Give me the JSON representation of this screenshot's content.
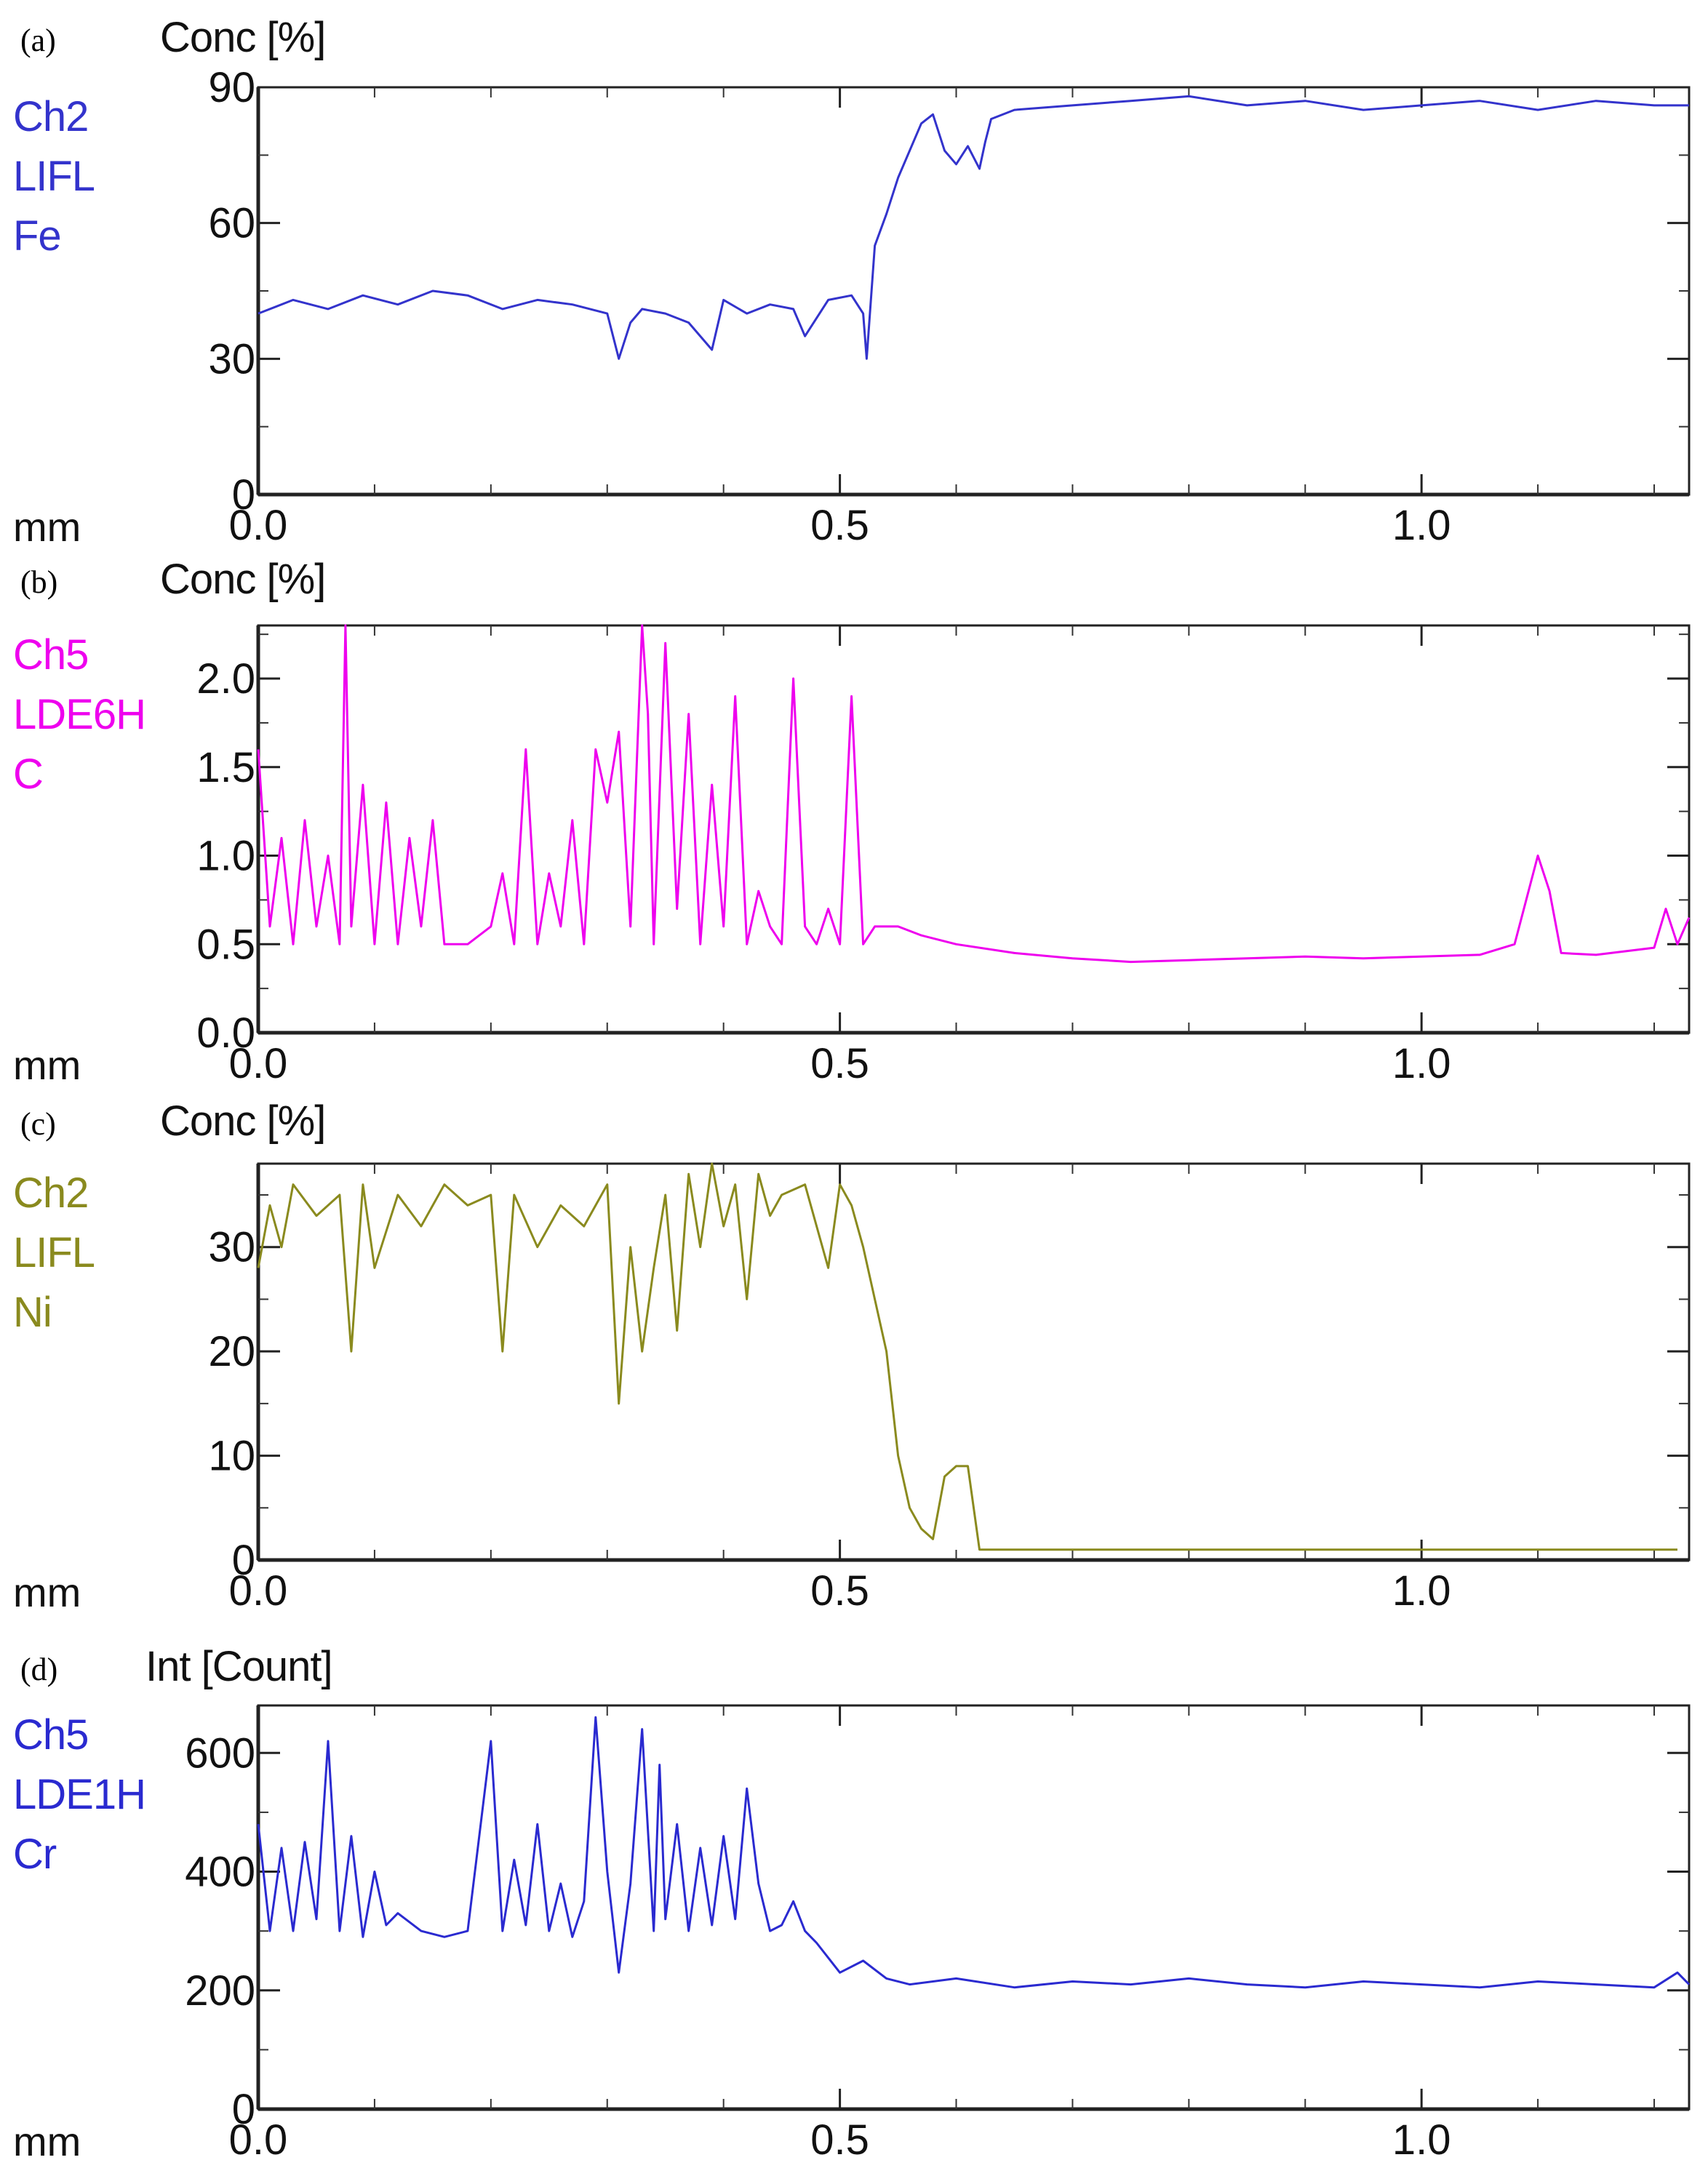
{
  "chart_data": [
    {
      "type": "line",
      "panel_label": "(a)",
      "ylabel": "Conc [%]",
      "xlabel": "mm",
      "channel": [
        "Ch2",
        "LIFL",
        "Fe"
      ],
      "color": "#3333cc",
      "xlim": [
        0.0,
        1.23
      ],
      "ylim": [
        0,
        90
      ],
      "xticks": [
        0.0,
        0.5,
        1.0
      ],
      "xtick_labels": [
        "0.0",
        "0.5",
        "1.0"
      ],
      "yticks": [
        0,
        30,
        60,
        90
      ],
      "ytick_labels": [
        "0",
        "30",
        "60",
        "90"
      ],
      "series": [
        {
          "x": [
            0.0,
            0.03,
            0.06,
            0.09,
            0.12,
            0.15,
            0.18,
            0.21,
            0.24,
            0.27,
            0.3,
            0.31,
            0.32,
            0.33,
            0.35,
            0.37,
            0.39,
            0.4,
            0.42,
            0.44,
            0.46,
            0.47,
            0.49,
            0.51,
            0.52,
            0.523,
            0.53,
            0.54,
            0.55,
            0.57,
            0.58,
            0.59,
            0.6,
            0.61,
            0.62,
            0.625,
            0.63,
            0.65,
            0.7,
            0.75,
            0.8,
            0.85,
            0.9,
            0.95,
            1.0,
            1.05,
            1.1,
            1.15,
            1.2,
            1.23
          ],
          "y": [
            40,
            43,
            41,
            44,
            42,
            45,
            44,
            41,
            43,
            42,
            40,
            30,
            38,
            41,
            40,
            38,
            32,
            43,
            40,
            42,
            41,
            35,
            43,
            44,
            40,
            30,
            55,
            62,
            70,
            82,
            84,
            76,
            73,
            77,
            72,
            78,
            83,
            85,
            86,
            87,
            88,
            86,
            87,
            85,
            86,
            87,
            85,
            87,
            86,
            86
          ]
        }
      ]
    },
    {
      "type": "line",
      "panel_label": "(b)",
      "ylabel": "Conc [%]",
      "xlabel": "mm",
      "channel": [
        "Ch5",
        "LDE6H",
        "C"
      ],
      "color": "#ee00ee",
      "xlim": [
        0.0,
        1.23
      ],
      "ylim": [
        0.0,
        2.3
      ],
      "xticks": [
        0.0,
        0.5,
        1.0
      ],
      "xtick_labels": [
        "0.0",
        "0.5",
        "1.0"
      ],
      "yticks": [
        0.0,
        0.5,
        1.0,
        1.5,
        2.0
      ],
      "ytick_labels": [
        "0.0",
        "0.5",
        "1.0",
        "1.5",
        "2.0"
      ],
      "series": [
        {
          "x": [
            0.0,
            0.01,
            0.02,
            0.03,
            0.04,
            0.05,
            0.06,
            0.07,
            0.075,
            0.08,
            0.09,
            0.1,
            0.11,
            0.12,
            0.13,
            0.14,
            0.15,
            0.16,
            0.18,
            0.2,
            0.21,
            0.22,
            0.23,
            0.24,
            0.25,
            0.26,
            0.27,
            0.28,
            0.29,
            0.3,
            0.31,
            0.32,
            0.33,
            0.335,
            0.34,
            0.35,
            0.36,
            0.37,
            0.38,
            0.39,
            0.4,
            0.41,
            0.42,
            0.43,
            0.44,
            0.45,
            0.46,
            0.47,
            0.48,
            0.49,
            0.5,
            0.51,
            0.52,
            0.53,
            0.55,
            0.57,
            0.6,
            0.65,
            0.7,
            0.75,
            0.8,
            0.85,
            0.9,
            0.95,
            1.0,
            1.05,
            1.08,
            1.1,
            1.11,
            1.12,
            1.15,
            1.2,
            1.21,
            1.22,
            1.23
          ],
          "y": [
            1.6,
            0.6,
            1.1,
            0.5,
            1.2,
            0.6,
            1.0,
            0.5,
            2.3,
            0.6,
            1.4,
            0.5,
            1.3,
            0.5,
            1.1,
            0.6,
            1.2,
            0.5,
            0.5,
            0.6,
            0.9,
            0.5,
            1.6,
            0.5,
            0.9,
            0.6,
            1.2,
            0.5,
            1.6,
            1.3,
            1.7,
            0.6,
            2.3,
            1.8,
            0.5,
            2.2,
            0.7,
            1.8,
            0.5,
            1.4,
            0.6,
            1.9,
            0.5,
            0.8,
            0.6,
            0.5,
            2.0,
            0.6,
            0.5,
            0.7,
            0.5,
            1.9,
            0.5,
            0.6,
            0.6,
            0.55,
            0.5,
            0.45,
            0.42,
            0.4,
            0.41,
            0.42,
            0.43,
            0.42,
            0.43,
            0.44,
            0.5,
            1.0,
            0.8,
            0.45,
            0.44,
            0.48,
            0.7,
            0.5,
            0.65
          ]
        }
      ]
    },
    {
      "type": "line",
      "panel_label": "(c)",
      "ylabel": "Conc [%]",
      "xlabel": "mm",
      "channel": [
        "Ch2",
        "LIFL",
        "Ni"
      ],
      "color": "#8a8a1e",
      "xlim": [
        0.0,
        1.23
      ],
      "ylim": [
        0,
        38
      ],
      "xticks": [
        0.0,
        0.5,
        1.0
      ],
      "xtick_labels": [
        "0.0",
        "0.5",
        "1.0"
      ],
      "yticks": [
        0,
        10,
        20,
        30
      ],
      "ytick_labels": [
        "0",
        "10",
        "20",
        "30"
      ],
      "series": [
        {
          "x": [
            0.0,
            0.01,
            0.02,
            0.03,
            0.05,
            0.07,
            0.08,
            0.09,
            0.1,
            0.12,
            0.14,
            0.16,
            0.18,
            0.2,
            0.21,
            0.22,
            0.24,
            0.26,
            0.28,
            0.3,
            0.31,
            0.32,
            0.33,
            0.34,
            0.35,
            0.36,
            0.37,
            0.38,
            0.39,
            0.4,
            0.41,
            0.42,
            0.43,
            0.44,
            0.45,
            0.47,
            0.49,
            0.5,
            0.51,
            0.52,
            0.53,
            0.54,
            0.55,
            0.56,
            0.57,
            0.58,
            0.59,
            0.6,
            0.61,
            0.62,
            0.63,
            0.7,
            0.8,
            0.9,
            1.0,
            1.1,
            1.2,
            1.22
          ],
          "y": [
            28,
            34,
            30,
            36,
            33,
            35,
            20,
            36,
            28,
            35,
            32,
            36,
            34,
            35,
            20,
            35,
            30,
            34,
            32,
            36,
            15,
            30,
            20,
            28,
            35,
            22,
            37,
            30,
            38,
            32,
            36,
            25,
            37,
            33,
            35,
            36,
            28,
            36,
            34,
            30,
            25,
            20,
            10,
            5,
            3,
            2,
            8,
            9,
            9,
            1,
            1,
            1,
            1,
            1,
            1,
            1,
            1,
            1
          ]
        }
      ]
    },
    {
      "type": "line",
      "panel_label": "(d)",
      "ylabel": "Int [Count]",
      "xlabel": "mm",
      "channel": [
        "Ch5",
        "LDE1H",
        "Cr"
      ],
      "color": "#2a2ad0",
      "xlim": [
        0.0,
        1.23
      ],
      "ylim": [
        0,
        680
      ],
      "xticks": [
        0.0,
        0.5,
        1.0
      ],
      "xtick_labels": [
        "0.0",
        "0.5",
        "1.0"
      ],
      "yticks": [
        0,
        200,
        400,
        600
      ],
      "ytick_labels": [
        "0",
        "200",
        "400",
        "600"
      ],
      "series": [
        {
          "x": [
            0.0,
            0.01,
            0.02,
            0.03,
            0.04,
            0.05,
            0.06,
            0.07,
            0.08,
            0.09,
            0.1,
            0.11,
            0.12,
            0.14,
            0.16,
            0.18,
            0.2,
            0.21,
            0.22,
            0.23,
            0.24,
            0.25,
            0.26,
            0.27,
            0.28,
            0.29,
            0.3,
            0.31,
            0.32,
            0.33,
            0.34,
            0.345,
            0.35,
            0.36,
            0.37,
            0.38,
            0.39,
            0.4,
            0.41,
            0.42,
            0.43,
            0.44,
            0.45,
            0.46,
            0.47,
            0.48,
            0.5,
            0.52,
            0.54,
            0.56,
            0.6,
            0.65,
            0.7,
            0.75,
            0.8,
            0.85,
            0.9,
            0.95,
            1.0,
            1.05,
            1.1,
            1.15,
            1.2,
            1.22,
            1.23
          ],
          "y": [
            480,
            300,
            440,
            300,
            450,
            320,
            620,
            300,
            460,
            290,
            400,
            310,
            330,
            300,
            290,
            300,
            620,
            300,
            420,
            310,
            480,
            300,
            380,
            290,
            350,
            660,
            400,
            230,
            380,
            640,
            300,
            580,
            320,
            480,
            300,
            440,
            310,
            460,
            320,
            540,
            380,
            300,
            310,
            350,
            300,
            280,
            230,
            250,
            220,
            210,
            220,
            205,
            215,
            210,
            220,
            210,
            205,
            215,
            210,
            205,
            215,
            210,
            205,
            230,
            210
          ]
        }
      ]
    }
  ]
}
